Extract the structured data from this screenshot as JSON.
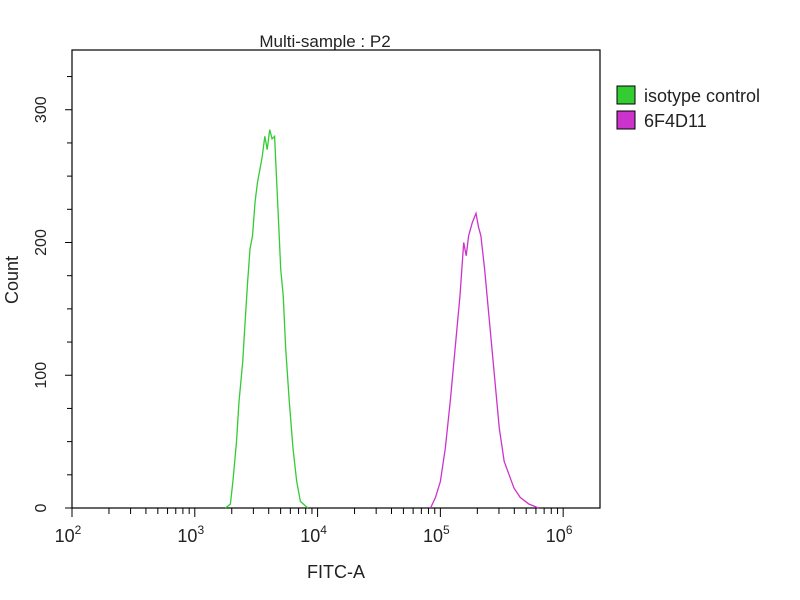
{
  "chart_data": {
    "type": "line",
    "title": "Multi-sample : P2",
    "xlabel": "FITC-A",
    "ylabel": "Count",
    "x_scale": "log",
    "xlim_log10": [
      2,
      6.3
    ],
    "ylim": [
      0,
      345
    ],
    "x_ticks": [
      {
        "base": "10",
        "exp": "2",
        "v": 2
      },
      {
        "base": "10",
        "exp": "3",
        "v": 3
      },
      {
        "base": "10",
        "exp": "4",
        "v": 4
      },
      {
        "base": "10",
        "exp": "5",
        "v": 5
      },
      {
        "base": "10",
        "exp": "6",
        "v": 6
      }
    ],
    "y_ticks": [
      {
        "label": "0",
        "v": 0
      },
      {
        "label": "100",
        "v": 100
      },
      {
        "label": "200",
        "v": 200
      },
      {
        "label": "300",
        "v": 300
      }
    ],
    "legend_position": "right",
    "series": [
      {
        "name": "isotype control",
        "color": "#33cc33",
        "points_log10x": [
          [
            3.25,
            0
          ],
          [
            3.29,
            3
          ],
          [
            3.31,
            20
          ],
          [
            3.34,
            50
          ],
          [
            3.36,
            80
          ],
          [
            3.39,
            110
          ],
          [
            3.41,
            140
          ],
          [
            3.43,
            170
          ],
          [
            3.45,
            195
          ],
          [
            3.47,
            205
          ],
          [
            3.49,
            230
          ],
          [
            3.51,
            245
          ],
          [
            3.53,
            255
          ],
          [
            3.55,
            265
          ],
          [
            3.57,
            280
          ],
          [
            3.59,
            270
          ],
          [
            3.61,
            285
          ],
          [
            3.63,
            278
          ],
          [
            3.65,
            280
          ],
          [
            3.66,
            260
          ],
          [
            3.68,
            220
          ],
          [
            3.7,
            180
          ],
          [
            3.72,
            160
          ],
          [
            3.74,
            120
          ],
          [
            3.77,
            80
          ],
          [
            3.8,
            45
          ],
          [
            3.83,
            20
          ],
          [
            3.86,
            5
          ],
          [
            3.92,
            0
          ]
        ]
      },
      {
        "name": "6F4D11",
        "color": "#cc33cc",
        "points_log10x": [
          [
            4.92,
            0
          ],
          [
            4.96,
            8
          ],
          [
            5.0,
            20
          ],
          [
            5.04,
            45
          ],
          [
            5.08,
            80
          ],
          [
            5.12,
            120
          ],
          [
            5.16,
            160
          ],
          [
            5.19,
            200
          ],
          [
            5.21,
            190
          ],
          [
            5.23,
            205
          ],
          [
            5.26,
            215
          ],
          [
            5.29,
            222
          ],
          [
            5.31,
            212
          ],
          [
            5.33,
            205
          ],
          [
            5.36,
            180
          ],
          [
            5.4,
            140
          ],
          [
            5.44,
            100
          ],
          [
            5.48,
            60
          ],
          [
            5.52,
            35
          ],
          [
            5.56,
            25
          ],
          [
            5.6,
            15
          ],
          [
            5.65,
            8
          ],
          [
            5.72,
            3
          ],
          [
            5.8,
            0
          ]
        ]
      }
    ]
  }
}
